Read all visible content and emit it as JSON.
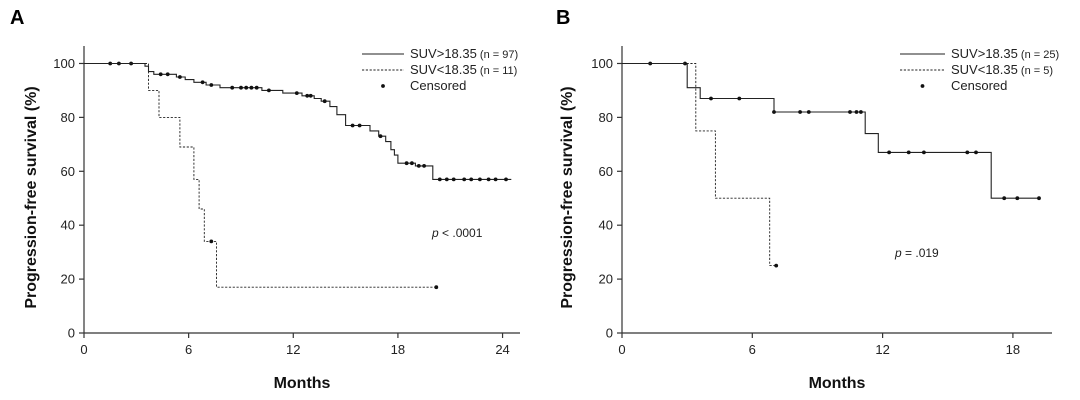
{
  "chart_data": [
    {
      "type": "line",
      "subtype": "kaplan-meier",
      "panel_label": "A",
      "xlabel": "Months",
      "ylabel": "Progression-free survival  (%)",
      "xlim": [
        0,
        25
      ],
      "ylim": [
        0,
        105
      ],
      "xticks": [
        0,
        6,
        12,
        18,
        24
      ],
      "yticks": [
        0,
        20,
        40,
        60,
        80,
        100
      ],
      "grid": false,
      "legend_position": "top-right",
      "legend": {
        "censored_label": "Censored"
      },
      "annotation": {
        "p_label": "p",
        "p_value": " < .0001"
      },
      "series": [
        {
          "name": "SUV>18.35",
          "n_label": " (n = 97)",
          "style": "solid",
          "color": "#222222",
          "steps": [
            [
              0,
              100
            ],
            [
              3.5,
              99
            ],
            [
              3.7,
              97
            ],
            [
              4.0,
              96
            ],
            [
              5.3,
              95
            ],
            [
              5.8,
              94
            ],
            [
              6.3,
              93
            ],
            [
              7.0,
              92
            ],
            [
              7.8,
              91
            ],
            [
              10.2,
              90
            ],
            [
              11.4,
              89
            ],
            [
              12.5,
              88
            ],
            [
              13.2,
              87
            ],
            [
              13.6,
              86
            ],
            [
              14.1,
              84
            ],
            [
              14.5,
              81
            ],
            [
              15.0,
              77
            ],
            [
              16.4,
              75
            ],
            [
              16.9,
              73
            ],
            [
              17.3,
              71
            ],
            [
              17.6,
              68
            ],
            [
              17.8,
              66
            ],
            [
              18.0,
              63
            ],
            [
              19.0,
              62
            ],
            [
              20.0,
              57
            ],
            [
              24.5,
              57
            ]
          ],
          "censored": [
            1.5,
            2.0,
            2.7,
            4.4,
            4.8,
            5.5,
            6.8,
            7.3,
            8.5,
            9.0,
            9.3,
            9.6,
            9.9,
            10.6,
            12.2,
            12.8,
            13.0,
            13.8,
            15.4,
            15.8,
            17.0,
            18.5,
            18.8,
            19.2,
            19.5,
            20.4,
            20.8,
            21.2,
            21.8,
            22.2,
            22.7,
            23.2,
            23.6,
            24.2
          ]
        },
        {
          "name": "SUV<18.35",
          "n_label": " (n = 11)",
          "style": "dashed",
          "color": "#222222",
          "steps": [
            [
              0,
              100
            ],
            [
              3.7,
              90
            ],
            [
              4.3,
              80
            ],
            [
              5.5,
              69
            ],
            [
              6.3,
              57
            ],
            [
              6.6,
              46
            ],
            [
              6.9,
              34
            ],
            [
              7.6,
              17
            ],
            [
              20.2,
              17
            ]
          ],
          "censored": [
            7.3,
            20.2
          ]
        }
      ]
    },
    {
      "type": "line",
      "subtype": "kaplan-meier",
      "panel_label": "B",
      "xlabel": "Months",
      "ylabel": "Progression-free survival  (%)",
      "xlim": [
        0,
        19.8
      ],
      "ylim": [
        0,
        105
      ],
      "xticks": [
        0,
        6,
        12,
        18
      ],
      "yticks": [
        0,
        20,
        40,
        60,
        80,
        100
      ],
      "grid": false,
      "legend_position": "top-right",
      "legend": {
        "censored_label": "Censored"
      },
      "annotation": {
        "p_label": "p",
        "p_value": " = .019"
      },
      "series": [
        {
          "name": "SUV>18.35",
          "n_label": " (n = 25)",
          "style": "solid",
          "color": "#222222",
          "steps": [
            [
              0,
              100
            ],
            [
              3.0,
              91
            ],
            [
              3.6,
              87
            ],
            [
              7.0,
              82
            ],
            [
              11.2,
              74
            ],
            [
              11.8,
              67
            ],
            [
              17.0,
              50
            ],
            [
              19.2,
              50
            ]
          ],
          "censored": [
            1.3,
            2.9,
            4.1,
            5.4,
            7.0,
            8.2,
            8.6,
            10.5,
            10.8,
            11.0,
            12.3,
            13.2,
            13.9,
            15.9,
            16.3,
            17.6,
            18.2,
            19.2
          ]
        },
        {
          "name": "SUV<18.35",
          "n_label": " (n = 5)",
          "style": "dashed",
          "color": "#222222",
          "steps": [
            [
              0,
              100
            ],
            [
              3.4,
              75
            ],
            [
              4.3,
              50
            ],
            [
              6.8,
              25
            ],
            [
              7.1,
              25
            ]
          ],
          "censored": [
            7.1
          ]
        }
      ]
    }
  ]
}
